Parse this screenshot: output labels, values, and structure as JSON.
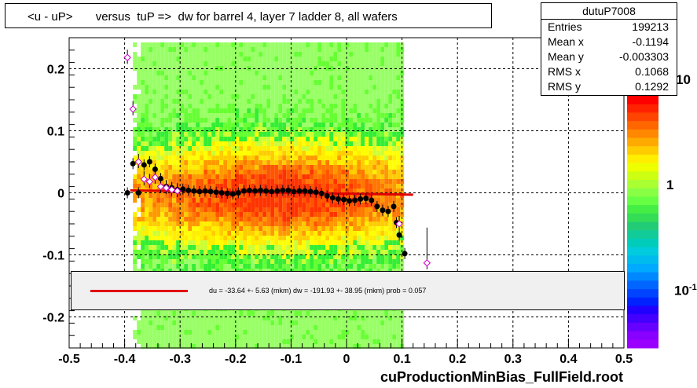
{
  "chart_data": {
    "type": "scatter",
    "title": "<u - uP>       versus  tuP =>  dw for barrel 4, layer 7 ladder 8, all wafers",
    "xlim": [
      -0.5,
      0.5
    ],
    "ylim": [
      -0.25,
      0.25
    ],
    "x_ticks": [
      "-0.5",
      "-0.4",
      "-0.3",
      "-0.2",
      "-0.1",
      "0",
      "0.1",
      "0.2",
      "0.3",
      "0.4",
      "0.5"
    ],
    "y_ticks": [
      "-0.2",
      "-0.1",
      "0",
      "0.1",
      "0.2"
    ],
    "grid": true,
    "series": [
      {
        "marker": "filled-circle",
        "color": "#000000",
        "x": [
          -0.395,
          -0.385,
          -0.375,
          -0.365,
          -0.355,
          -0.345,
          -0.335,
          -0.325,
          -0.315,
          -0.305,
          -0.295,
          -0.285,
          -0.275,
          -0.265,
          -0.255,
          -0.245,
          -0.235,
          -0.225,
          -0.215,
          -0.205,
          -0.195,
          -0.185,
          -0.175,
          -0.165,
          -0.155,
          -0.145,
          -0.135,
          -0.125,
          -0.115,
          -0.105,
          -0.095,
          -0.085,
          -0.075,
          -0.065,
          -0.055,
          -0.045,
          -0.035,
          -0.025,
          -0.015,
          -0.005,
          0.005,
          0.015,
          0.025,
          0.035,
          0.045,
          0.055,
          0.065,
          0.075,
          0.085,
          0.09,
          0.095,
          0.105
        ],
        "y": [
          0.0,
          0.047,
          0.0,
          0.045,
          0.05,
          0.038,
          0.023,
          0.01,
          0.008,
          0.005,
          0.006,
          0.004,
          0.003,
          0.002,
          0.003,
          0.002,
          0.001,
          0.0,
          -0.001,
          -0.002,
          0.0,
          0.003,
          0.004,
          0.003,
          0.004,
          0.003,
          0.002,
          0.003,
          0.004,
          0.004,
          0.002,
          0.003,
          0.003,
          0.002,
          0.001,
          -0.001,
          -0.005,
          -0.008,
          -0.01,
          -0.011,
          -0.013,
          -0.012,
          -0.01,
          -0.009,
          -0.012,
          -0.022,
          -0.028,
          -0.03,
          -0.022,
          -0.048,
          -0.068,
          -0.098
        ]
      },
      {
        "marker": "open-diamond",
        "color": "#cc00cc",
        "x": [
          -0.395,
          -0.385,
          -0.375,
          -0.365,
          -0.355,
          -0.345,
          -0.335,
          -0.325,
          -0.315,
          -0.305,
          0.095,
          0.145
        ],
        "y": [
          0.218,
          0.135,
          0.05,
          0.022,
          0.018,
          0.025,
          0.01,
          0.008,
          0.005,
          0.003,
          -0.05,
          -0.113
        ]
      }
    ],
    "fit_line": {
      "x": [
        -0.39,
        0.12
      ],
      "y": [
        0.004,
        -0.003
      ],
      "color": "#e00000"
    },
    "colorbar": {
      "labels": [
        "10",
        "1",
        "10"
      ],
      "exponents": [
        "",
        "",
        "-1"
      ]
    }
  },
  "stats": {
    "name": "dutuP7008",
    "rows": [
      {
        "key": "Entries",
        "value": "199213"
      },
      {
        "key": "Mean x",
        "value": "-0.1194"
      },
      {
        "key": "Mean y",
        "value": "-0.003303"
      },
      {
        "key": "RMS x",
        "value": "0.1068"
      },
      {
        "key": "RMS y",
        "value": "0.1292"
      }
    ]
  },
  "fit_text": "du =  -33.64 +-  5.63 (mkm) dw = -191.93 +- 38.95 (mkm) prob = 0.057",
  "footer": "cuProductionMinBias_FullField.root"
}
